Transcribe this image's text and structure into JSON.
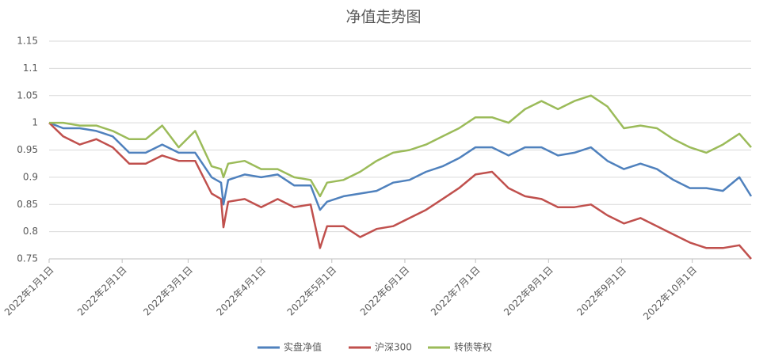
{
  "chart_data": {
    "type": "line",
    "title": "净值走势图",
    "x": [
      "2022-01-01",
      "2022-01-07",
      "2022-01-14",
      "2022-01-21",
      "2022-01-28",
      "2022-02-04",
      "2022-02-11",
      "2022-02-18",
      "2022-02-25",
      "2022-03-04",
      "2022-03-11",
      "2022-03-15",
      "2022-03-16",
      "2022-03-18",
      "2022-03-25",
      "2022-04-01",
      "2022-04-08",
      "2022-04-15",
      "2022-04-22",
      "2022-04-26",
      "2022-04-29",
      "2022-05-06",
      "2022-05-13",
      "2022-05-20",
      "2022-05-27",
      "2022-06-03",
      "2022-06-10",
      "2022-06-17",
      "2022-06-24",
      "2022-07-01",
      "2022-07-08",
      "2022-07-15",
      "2022-07-22",
      "2022-07-29",
      "2022-08-05",
      "2022-08-12",
      "2022-08-19",
      "2022-08-26",
      "2022-09-02",
      "2022-09-09",
      "2022-09-16",
      "2022-09-23",
      "2022-09-30",
      "2022-10-07",
      "2022-10-14",
      "2022-10-21",
      "2022-10-26"
    ],
    "series": [
      {
        "name": "实盘净值",
        "color": "#4f81bd",
        "values": [
          1.0,
          0.99,
          0.99,
          0.985,
          0.975,
          0.945,
          0.945,
          0.96,
          0.945,
          0.945,
          0.9,
          0.89,
          0.85,
          0.895,
          0.905,
          0.9,
          0.905,
          0.885,
          0.885,
          0.84,
          0.855,
          0.865,
          0.87,
          0.875,
          0.89,
          0.895,
          0.91,
          0.92,
          0.935,
          0.955,
          0.955,
          0.94,
          0.955,
          0.955,
          0.94,
          0.945,
          0.955,
          0.93,
          0.915,
          0.925,
          0.915,
          0.895,
          0.88,
          0.88,
          0.875,
          0.9,
          0.865
        ]
      },
      {
        "name": "沪深300",
        "color": "#c0504d",
        "values": [
          1.0,
          0.975,
          0.96,
          0.97,
          0.955,
          0.925,
          0.925,
          0.94,
          0.93,
          0.93,
          0.87,
          0.86,
          0.808,
          0.855,
          0.86,
          0.845,
          0.86,
          0.845,
          0.85,
          0.77,
          0.81,
          0.81,
          0.79,
          0.805,
          0.81,
          0.825,
          0.84,
          0.86,
          0.88,
          0.905,
          0.91,
          0.88,
          0.865,
          0.86,
          0.845,
          0.845,
          0.85,
          0.83,
          0.815,
          0.825,
          0.81,
          0.795,
          0.78,
          0.77,
          0.77,
          0.775,
          0.75
        ]
      },
      {
        "name": "转债等权",
        "color": "#9bbb59",
        "values": [
          1.0,
          1.0,
          0.995,
          0.995,
          0.985,
          0.97,
          0.97,
          0.995,
          0.955,
          0.985,
          0.92,
          0.915,
          0.9,
          0.925,
          0.93,
          0.915,
          0.915,
          0.9,
          0.895,
          0.865,
          0.89,
          0.895,
          0.91,
          0.93,
          0.945,
          0.95,
          0.96,
          0.975,
          0.99,
          1.01,
          1.01,
          1.0,
          1.025,
          1.04,
          1.025,
          1.04,
          1.05,
          1.03,
          0.99,
          0.995,
          0.99,
          0.97,
          0.955,
          0.945,
          0.96,
          0.98,
          0.955
        ]
      }
    ],
    "xlim": [
      "2022-01-01",
      "2022-10-26"
    ],
    "xticks": [
      {
        "value": "2022-01-01",
        "label": "2022年1月1日"
      },
      {
        "value": "2022-02-01",
        "label": "2022年2月1日"
      },
      {
        "value": "2022-03-01",
        "label": "2022年3月1日"
      },
      {
        "value": "2022-04-01",
        "label": "2022年4月1日"
      },
      {
        "value": "2022-05-01",
        "label": "2022年5月1日"
      },
      {
        "value": "2022-06-01",
        "label": "2022年6月1日"
      },
      {
        "value": "2022-07-01",
        "label": "2022年7月1日"
      },
      {
        "value": "2022-08-01",
        "label": "2022年8月1日"
      },
      {
        "value": "2022-09-01",
        "label": "2022年9月1日"
      },
      {
        "value": "2022-10-01",
        "label": "2022年10月1日"
      }
    ],
    "ylim": [
      0.75,
      1.15
    ],
    "yticks": [
      0.75,
      0.8,
      0.85,
      0.9,
      0.95,
      1,
      1.05,
      1.1,
      1.15
    ],
    "grid": true,
    "legend": "bottom"
  }
}
